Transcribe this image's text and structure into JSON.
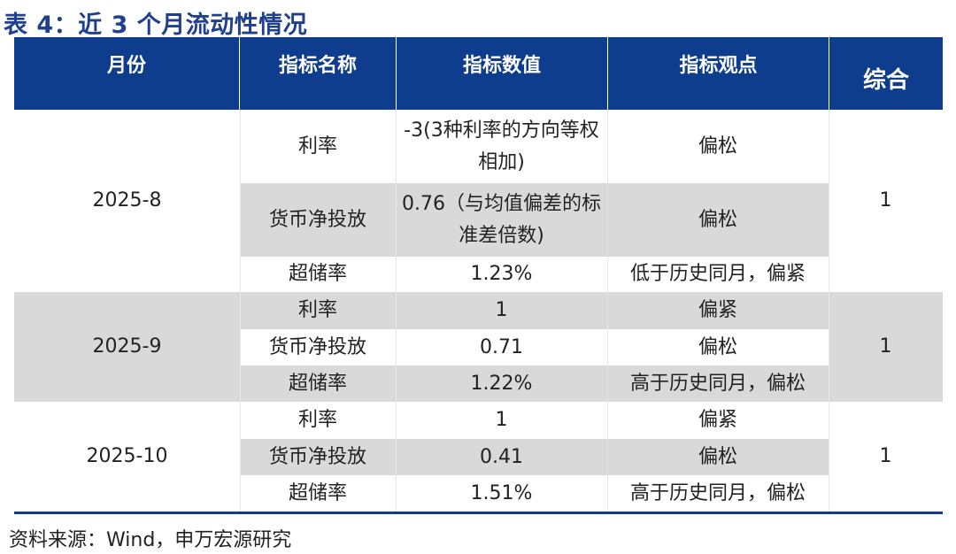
{
  "title": "表 4：近 3 个月流动性情况",
  "headers": [
    "月份",
    "指标名称",
    "指标数值",
    "指标观点",
    "综合"
  ],
  "groups": [
    {
      "month": "2025-8",
      "composite": "1",
      "rows": [
        {
          "name": "利率",
          "value": "-3(3种利率的方向等权相加)",
          "view": "偏松"
        },
        {
          "name": "货币净投放",
          "value": "0.76（与均值偏差的标准差倍数)",
          "view": "偏松"
        },
        {
          "name": "超储率",
          "value": "1.23%",
          "view": "低于历史同月，偏紧"
        }
      ]
    },
    {
      "month": "2025-9",
      "composite": "1",
      "rows": [
        {
          "name": "利率",
          "value": "1",
          "view": "偏紧"
        },
        {
          "name": "货币净投放",
          "value": "0.71",
          "view": "偏松"
        },
        {
          "name": "超储率",
          "value": "1.22%",
          "view": "高于历史同月，偏松"
        }
      ]
    },
    {
      "month": "2025-10",
      "composite": "1",
      "rows": [
        {
          "name": "利率",
          "value": "1",
          "view": "偏紧"
        },
        {
          "name": "货币净投放",
          "value": "0.41",
          "view": "偏松"
        },
        {
          "name": "超储率",
          "value": "1.51%",
          "view": "高于历史同月，偏松"
        }
      ]
    }
  ],
  "source": "资料来源：Wind，申万宏源研究",
  "colors": {
    "header_bg": "#0f3d8e",
    "title": "#1f3f8f",
    "stripe": "#d9d9d9"
  }
}
